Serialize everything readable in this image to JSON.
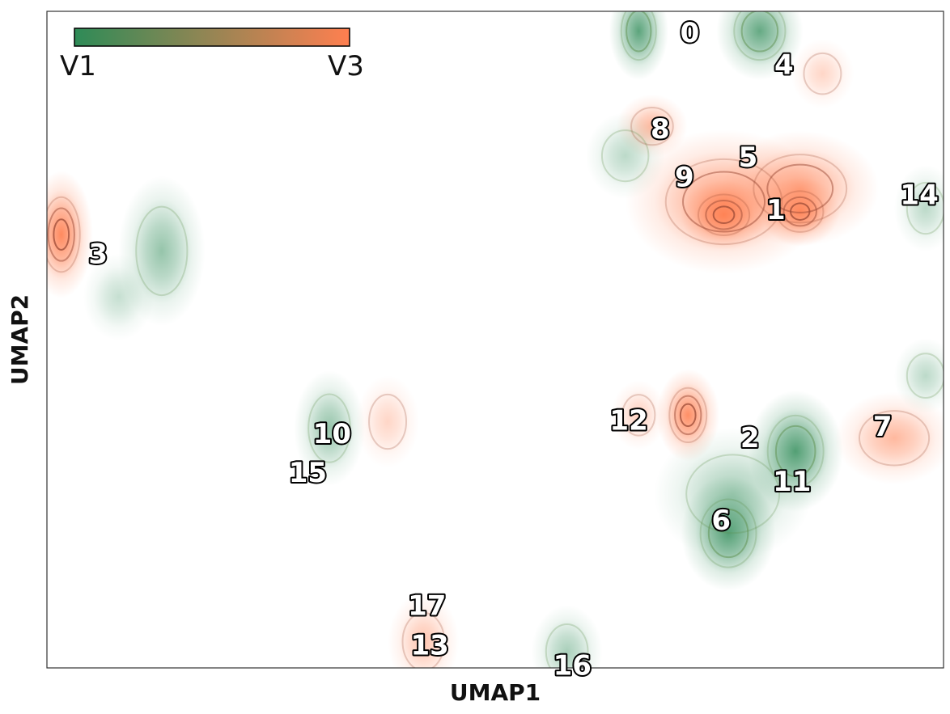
{
  "chart_data": {
    "type": "heatmap",
    "title": "",
    "xlabel": "UMAP1",
    "ylabel": "UMAP2",
    "xlim": [
      0,
      100
    ],
    "ylim": [
      0,
      100
    ],
    "grid": false,
    "legend_position": "top-left",
    "colorbar": {
      "low_label": "V1",
      "high_label": "V3",
      "low_color": "#2e8b57",
      "high_color": "#ff7f50"
    },
    "contour_color_low": "#5e8f4d",
    "contour_color_high": "#9b4a35",
    "density_regions": [
      {
        "x": 1.6,
        "y": 66,
        "sx": 1.6,
        "sy": 4.4,
        "value": "V3",
        "peak": 1.0
      },
      {
        "x": 12.8,
        "y": 63.5,
        "sx": 2.2,
        "sy": 5.2,
        "value": "V1",
        "peak": 0.55
      },
      {
        "x": 8.0,
        "y": 56.5,
        "sx": 1.8,
        "sy": 3.0,
        "value": "V1",
        "peak": 0.3
      },
      {
        "x": 31.5,
        "y": 36.5,
        "sx": 1.8,
        "sy": 4.0,
        "value": "V1",
        "peak": 0.55
      },
      {
        "x": 38.0,
        "y": 37.5,
        "sx": 1.6,
        "sy": 3.2,
        "value": "V3",
        "peak": 0.35
      },
      {
        "x": 42.0,
        "y": 4.0,
        "sx": 1.8,
        "sy": 3.4,
        "value": "V3",
        "peak": 0.5
      },
      {
        "x": 58.0,
        "y": 2.5,
        "sx": 1.8,
        "sy": 3.2,
        "value": "V1",
        "peak": 0.45
      },
      {
        "x": 66.0,
        "y": 97.0,
        "sx": 1.5,
        "sy": 3.4,
        "value": "V1",
        "peak": 0.85
      },
      {
        "x": 79.5,
        "y": 97.0,
        "sx": 2.2,
        "sy": 3.4,
        "value": "V1",
        "peak": 0.8
      },
      {
        "x": 86.5,
        "y": 90.5,
        "sx": 1.6,
        "sy": 2.4,
        "value": "V3",
        "peak": 0.35
      },
      {
        "x": 67.5,
        "y": 82.5,
        "sx": 1.8,
        "sy": 2.2,
        "value": "V3",
        "peak": 0.6
      },
      {
        "x": 64.5,
        "y": 78.0,
        "sx": 2.0,
        "sy": 3.0,
        "value": "V1",
        "peak": 0.35
      },
      {
        "x": 75.5,
        "y": 71.0,
        "sx": 5.0,
        "sy": 5.0,
        "value": "V3",
        "peak": 0.8
      },
      {
        "x": 84.0,
        "y": 73.0,
        "sx": 4.0,
        "sy": 4.0,
        "value": "V3",
        "peak": 0.75
      },
      {
        "x": 75.5,
        "y": 69.0,
        "sx": 2.2,
        "sy": 2.4,
        "value": "V3",
        "peak": 1.0
      },
      {
        "x": 84.0,
        "y": 69.5,
        "sx": 2.0,
        "sy": 2.4,
        "value": "V3",
        "peak": 0.95
      },
      {
        "x": 98.0,
        "y": 70.0,
        "sx": 1.6,
        "sy": 3.0,
        "value": "V1",
        "peak": 0.35
      },
      {
        "x": 71.5,
        "y": 38.5,
        "sx": 1.6,
        "sy": 3.2,
        "value": "V3",
        "peak": 0.95
      },
      {
        "x": 66.0,
        "y": 38.5,
        "sx": 1.4,
        "sy": 2.4,
        "value": "V3",
        "peak": 0.4
      },
      {
        "x": 76.0,
        "y": 20.5,
        "sx": 2.4,
        "sy": 4.0,
        "value": "V1",
        "peak": 0.85
      },
      {
        "x": 76.5,
        "y": 26.5,
        "sx": 4.0,
        "sy": 4.6,
        "value": "V1",
        "peak": 0.45
      },
      {
        "x": 83.5,
        "y": 33.0,
        "sx": 2.4,
        "sy": 4.2,
        "value": "V1",
        "peak": 0.9
      },
      {
        "x": 94.5,
        "y": 35.0,
        "sx": 3.0,
        "sy": 3.2,
        "value": "V3",
        "peak": 0.6
      },
      {
        "x": 98.0,
        "y": 44.5,
        "sx": 1.6,
        "sy": 2.6,
        "value": "V1",
        "peak": 0.35
      }
    ],
    "cluster_labels": [
      {
        "label": "0",
        "x": 71.7,
        "y": 96.7
      },
      {
        "label": "4",
        "x": 82.2,
        "y": 91.8
      },
      {
        "label": "8",
        "x": 68.4,
        "y": 82.0
      },
      {
        "label": "5",
        "x": 78.2,
        "y": 77.7
      },
      {
        "label": "9",
        "x": 71.1,
        "y": 74.7
      },
      {
        "label": "14",
        "x": 97.3,
        "y": 72.0
      },
      {
        "label": "1",
        "x": 81.3,
        "y": 69.7
      },
      {
        "label": "3",
        "x": 5.7,
        "y": 63.0
      },
      {
        "label": "12",
        "x": 64.9,
        "y": 37.6
      },
      {
        "label": "10",
        "x": 31.8,
        "y": 35.6
      },
      {
        "label": "7",
        "x": 93.2,
        "y": 36.7
      },
      {
        "label": "2",
        "x": 78.4,
        "y": 35.0
      },
      {
        "label": "11",
        "x": 83.1,
        "y": 28.3
      },
      {
        "label": "15",
        "x": 29.1,
        "y": 29.7
      },
      {
        "label": "6",
        "x": 75.2,
        "y": 22.4
      },
      {
        "label": "17",
        "x": 42.4,
        "y": 9.4
      },
      {
        "label": "13",
        "x": 42.7,
        "y": 3.4
      },
      {
        "label": "16",
        "x": 58.6,
        "y": 0.3
      }
    ]
  }
}
